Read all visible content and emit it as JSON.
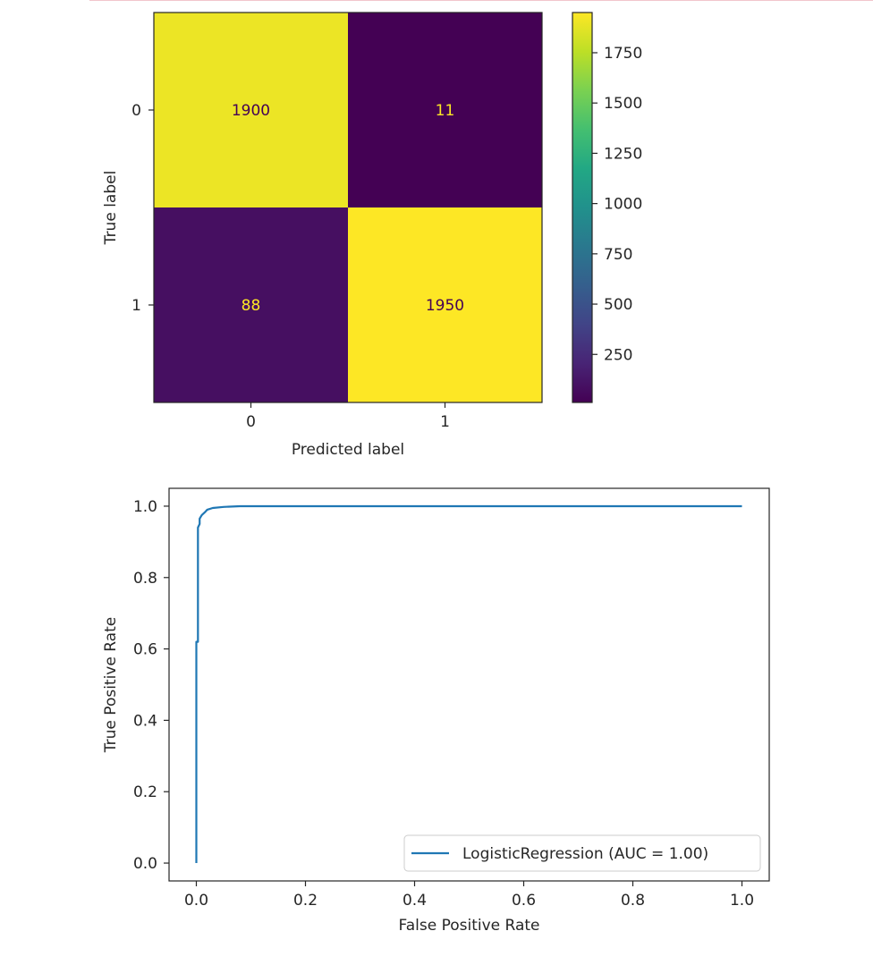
{
  "chart_data": [
    {
      "type": "heatmap",
      "xlabel": "Predicted label",
      "ylabel": "True label",
      "x_categories": [
        "0",
        "1"
      ],
      "y_categories": [
        "0",
        "1"
      ],
      "matrix": [
        [
          1900,
          11
        ],
        [
          88,
          1950
        ]
      ],
      "cell_labels": [
        [
          "1900",
          "11"
        ],
        [
          "88",
          "1950"
        ]
      ],
      "colormap": "viridis",
      "colorbar": {
        "range": [
          11,
          1950
        ],
        "ticks": [
          250,
          500,
          750,
          1000,
          1250,
          1500,
          1750
        ],
        "tick_labels": [
          "250",
          "500",
          "750",
          "1000",
          "1250",
          "1500",
          "1750"
        ]
      },
      "label_colors": {
        "on_dark": "#fde725",
        "on_light": "#440154"
      },
      "grid": false
    },
    {
      "type": "line",
      "xlabel": "False Positive Rate",
      "ylabel": "True Positive Rate",
      "xlim": [
        -0.05,
        1.05
      ],
      "ylim": [
        -0.05,
        1.05
      ],
      "x_ticks": [
        0.0,
        0.2,
        0.4,
        0.6,
        0.8,
        1.0
      ],
      "x_tick_labels": [
        "0.0",
        "0.2",
        "0.4",
        "0.6",
        "0.8",
        "1.0"
      ],
      "y_ticks": [
        0.0,
        0.2,
        0.4,
        0.6,
        0.8,
        1.0
      ],
      "y_tick_labels": [
        "0.0",
        "0.2",
        "0.4",
        "0.6",
        "0.8",
        "1.0"
      ],
      "grid": false,
      "legend_position": "lower-right",
      "series": [
        {
          "name": "LogisticRegression (AUC = 1.00)",
          "color": "#1f77b4",
          "x": [
            0.0,
            0.0,
            0.003,
            0.003,
            0.006,
            0.006,
            0.01,
            0.015,
            0.02,
            0.03,
            0.05,
            0.08,
            0.2,
            0.5,
            1.0
          ],
          "y": [
            0.0,
            0.62,
            0.62,
            0.94,
            0.95,
            0.965,
            0.975,
            0.982,
            0.99,
            0.995,
            0.998,
            1.0,
            1.0,
            1.0,
            1.0
          ]
        }
      ]
    }
  ]
}
